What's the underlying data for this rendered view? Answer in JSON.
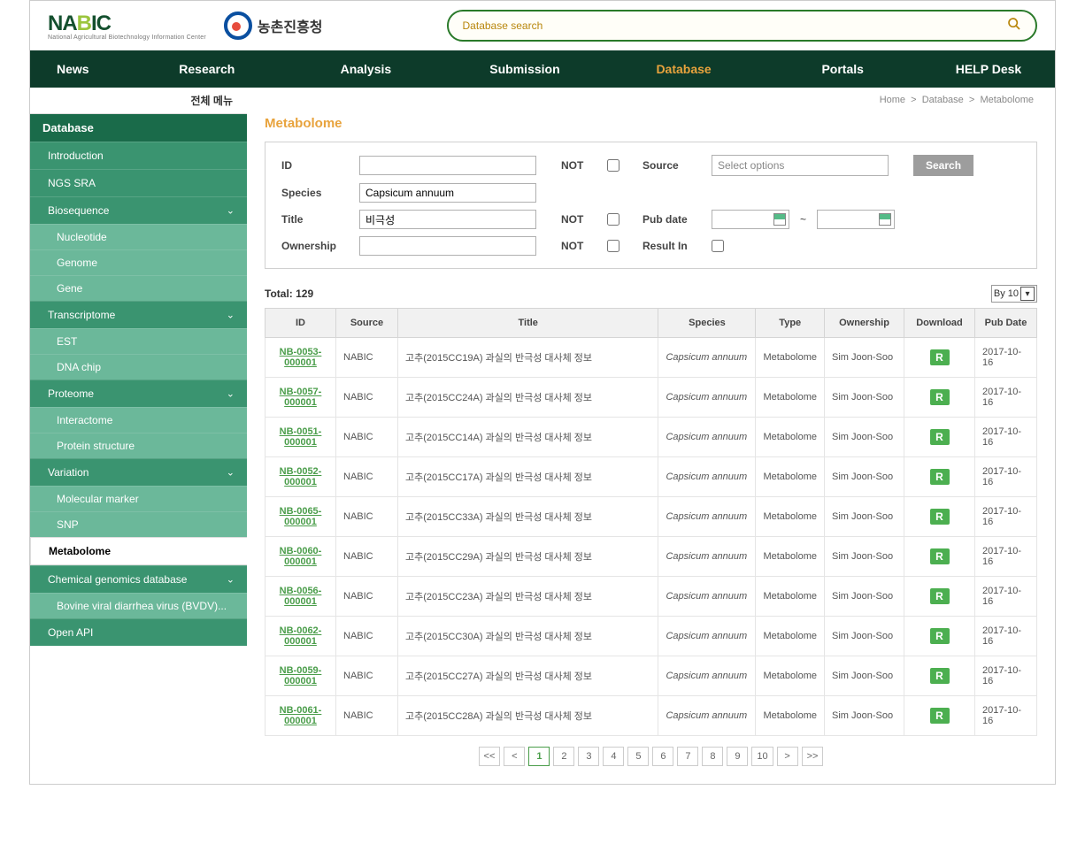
{
  "header": {
    "logo_main_pre": "NA",
    "logo_main_b": "B",
    "logo_main_post": "IC",
    "logo_sub": "National Agricultural Biotechnology Information Center",
    "rda_label": "농촌진흥청",
    "search_placeholder": "Database search"
  },
  "topnav": {
    "items": [
      "News",
      "Research",
      "Analysis",
      "Submission",
      "Database",
      "Portals",
      "HELP Desk"
    ],
    "active": "Database"
  },
  "breadcrumb": {
    "parts": [
      "Home",
      "Database",
      "Metabolome"
    ]
  },
  "sidebar": {
    "topmenu": "전체 메뉴",
    "header": "Database",
    "items": [
      {
        "type": "section",
        "label": "Introduction"
      },
      {
        "type": "section",
        "label": "NGS SRA"
      },
      {
        "type": "section",
        "label": "Biosequence",
        "expandable": true
      },
      {
        "type": "sub",
        "label": "Nucleotide"
      },
      {
        "type": "sub",
        "label": "Genome"
      },
      {
        "type": "sub",
        "label": "Gene"
      },
      {
        "type": "section",
        "label": "Transcriptome",
        "expandable": true
      },
      {
        "type": "sub",
        "label": "EST"
      },
      {
        "type": "sub",
        "label": "DNA chip"
      },
      {
        "type": "section",
        "label": "Proteome",
        "expandable": true
      },
      {
        "type": "sub",
        "label": "Interactome"
      },
      {
        "type": "sub",
        "label": "Protein structure"
      },
      {
        "type": "section",
        "label": "Variation",
        "expandable": true
      },
      {
        "type": "sub",
        "label": "Molecular marker"
      },
      {
        "type": "sub",
        "label": "SNP"
      },
      {
        "type": "active",
        "label": "Metabolome"
      },
      {
        "type": "section",
        "label": "Chemical genomics database",
        "expandable": true
      },
      {
        "type": "sub",
        "label": "Bovine viral diarrhea virus (BVDV)..."
      },
      {
        "type": "section",
        "label": "Open API"
      }
    ]
  },
  "page": {
    "title": "Metabolome"
  },
  "search_panel": {
    "labels": {
      "id": "ID",
      "species": "Species",
      "title": "Title",
      "ownership": "Ownership",
      "not": "NOT",
      "source": "Source",
      "pub_date": "Pub date",
      "result_in": "Result In",
      "source_placeholder": "Select options",
      "search_btn": "Search",
      "tilde": "~"
    },
    "values": {
      "id": "",
      "species": "Capsicum annuum",
      "title": "비극성",
      "ownership": ""
    }
  },
  "results": {
    "total_label": "Total: 129",
    "page_size_label": "By 10",
    "columns": [
      "ID",
      "Source",
      "Title",
      "Species",
      "Type",
      "Ownership",
      "Download",
      "Pub Date"
    ],
    "download_badge": "R",
    "rows": [
      {
        "id": "NB-0053-000001",
        "source": "NABIC",
        "title": "고추(2015CC19A) 과실의 반극성 대사체 정보",
        "species": "Capsicum annuum",
        "type": "Metabolome",
        "ownership": "Sim Joon-Soo",
        "pub_date": "2017-10-16"
      },
      {
        "id": "NB-0057-000001",
        "source": "NABIC",
        "title": "고추(2015CC24A) 과실의 반극성 대사체 정보",
        "species": "Capsicum annuum",
        "type": "Metabolome",
        "ownership": "Sim Joon-Soo",
        "pub_date": "2017-10-16"
      },
      {
        "id": "NB-0051-000001",
        "source": "NABIC",
        "title": "고추(2015CC14A) 과실의 반극성 대사체 정보",
        "species": "Capsicum annuum",
        "type": "Metabolome",
        "ownership": "Sim Joon-Soo",
        "pub_date": "2017-10-16"
      },
      {
        "id": "NB-0052-000001",
        "source": "NABIC",
        "title": "고추(2015CC17A) 과실의 반극성 대사체 정보",
        "species": "Capsicum annuum",
        "type": "Metabolome",
        "ownership": "Sim Joon-Soo",
        "pub_date": "2017-10-16"
      },
      {
        "id": "NB-0065-000001",
        "source": "NABIC",
        "title": "고추(2015CC33A) 과실의 반극성 대사체 정보",
        "species": "Capsicum annuum",
        "type": "Metabolome",
        "ownership": "Sim Joon-Soo",
        "pub_date": "2017-10-16"
      },
      {
        "id": "NB-0060-000001",
        "source": "NABIC",
        "title": "고추(2015CC29A) 과실의 반극성 대사체 정보",
        "species": "Capsicum annuum",
        "type": "Metabolome",
        "ownership": "Sim Joon-Soo",
        "pub_date": "2017-10-16"
      },
      {
        "id": "NB-0056-000001",
        "source": "NABIC",
        "title": "고추(2015CC23A) 과실의 반극성 대사체 정보",
        "species": "Capsicum annuum",
        "type": "Metabolome",
        "ownership": "Sim Joon-Soo",
        "pub_date": "2017-10-16"
      },
      {
        "id": "NB-0062-000001",
        "source": "NABIC",
        "title": "고추(2015CC30A) 과실의 반극성 대사체 정보",
        "species": "Capsicum annuum",
        "type": "Metabolome",
        "ownership": "Sim Joon-Soo",
        "pub_date": "2017-10-16"
      },
      {
        "id": "NB-0059-000001",
        "source": "NABIC",
        "title": "고추(2015CC27A) 과실의 반극성 대사체 정보",
        "species": "Capsicum annuum",
        "type": "Metabolome",
        "ownership": "Sim Joon-Soo",
        "pub_date": "2017-10-16"
      },
      {
        "id": "NB-0061-000001",
        "source": "NABIC",
        "title": "고추(2015CC28A) 과실의 반극성 대사체 정보",
        "species": "Capsicum annuum",
        "type": "Metabolome",
        "ownership": "Sim Joon-Soo",
        "pub_date": "2017-10-16"
      }
    ]
  },
  "pager": {
    "first": "<<",
    "prev": "<",
    "pages": [
      "1",
      "2",
      "3",
      "4",
      "5",
      "6",
      "7",
      "8",
      "9",
      "10"
    ],
    "next": ">",
    "last": ">>",
    "active": "1"
  },
  "colors": {
    "nav_bg": "#0d3b2a",
    "nav_active": "#e8a33d",
    "sidebar_header": "#1a6b4a",
    "sidebar_section": "#3a9470",
    "sidebar_sub": "#6bb89a",
    "link_green": "#4a9d4a",
    "badge_green": "#4caf50",
    "search_border": "#2a7a2a"
  }
}
